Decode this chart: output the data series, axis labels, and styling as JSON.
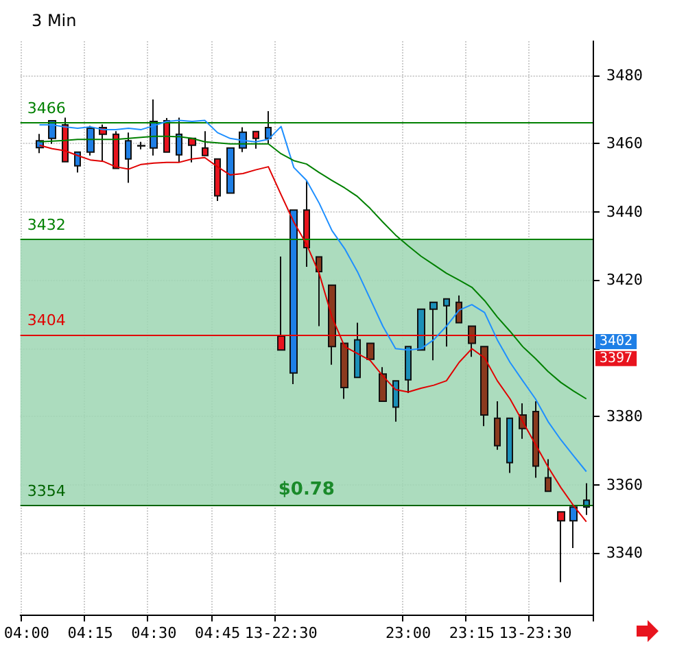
{
  "chart_data": {
    "type": "candlestick",
    "title": "3 Min",
    "categories": [
      "04:00",
      null,
      null,
      null,
      null,
      "04:15",
      null,
      null,
      null,
      null,
      "04:30",
      null,
      null,
      null,
      null,
      "04:45",
      null,
      null,
      null,
      null,
      "13-22:30",
      null,
      null,
      null,
      null,
      null,
      null,
      null,
      null,
      null,
      "23:00",
      null,
      null,
      null,
      null,
      "23:15",
      null,
      null,
      null,
      null,
      "13-23:30",
      null,
      null,
      null,
      null
    ],
    "ohlc": [
      null,
      [
        3458.8,
        3462.8,
        3457.2,
        3460.8
      ],
      [
        3461.5,
        3466.7,
        3459.9,
        3466.7
      ],
      [
        3465.5,
        3467.6,
        3454.7,
        3454.7
      ],
      [
        3453.5,
        3457.5,
        3451.5,
        3457.5
      ],
      [
        3457.5,
        3465.2,
        3456.5,
        3464.5
      ],
      [
        3464.7,
        3465.6,
        3454.8,
        3462.7
      ],
      [
        3462.7,
        3463.6,
        3452.7,
        3452.7
      ],
      [
        3455.5,
        3463.2,
        3448.5,
        3460.8
      ],
      [
        3459.3,
        3460.5,
        3458.3,
        3459.4
      ],
      [
        3458.7,
        3472.9,
        3456.5,
        3466.5
      ],
      [
        3466.7,
        3467.5,
        3457.5,
        3457.5
      ],
      [
        3456.7,
        3467.6,
        3454.5,
        3462.7
      ],
      [
        3461.5,
        3461.5,
        3454.5,
        3459.5
      ],
      [
        3458.7,
        3463.6,
        3456.5,
        3456.5
      ],
      [
        3455.5,
        3455.5,
        3443.2,
        3444.7
      ],
      [
        3445.5,
        3458.7,
        3445.5,
        3458.7
      ],
      [
        3458.7,
        3464.8,
        3457.5,
        3463.3
      ],
      [
        3463.5,
        3463.5,
        3458.5,
        3461.5
      ],
      [
        3461.5,
        3469.5,
        3459.9,
        3464.7
      ],
      [
        3403.6,
        3426.9,
        3399.5,
        3399.5
      ],
      [
        3392.8,
        3440.5,
        3389.5,
        3440.5
      ],
      [
        3440.5,
        3449.2,
        3423.9,
        3429.5
      ],
      [
        3426.8,
        3426.8,
        3406.5,
        3422.5
      ],
      [
        3418.5,
        3418.5,
        3395.2,
        3400.5
      ],
      [
        3401.5,
        3401.5,
        3385.2,
        3388.5
      ],
      [
        3391.5,
        3407.5,
        3391.5,
        3402.5
      ],
      [
        3401.5,
        3401.5,
        3396.8,
        3396.8
      ],
      [
        3392.5,
        3394.5,
        3384.5,
        3384.5
      ],
      [
        3382.8,
        3390.5,
        3378.5,
        3390.5
      ],
      [
        3390.8,
        3400.5,
        3386.9,
        3400.5
      ],
      [
        3399.5,
        3411.5,
        3399.5,
        3411.5
      ],
      [
        3411.5,
        3413.5,
        3396.5,
        3413.5
      ],
      [
        3412.5,
        3414.5,
        3400.5,
        3414.5
      ],
      [
        3413.5,
        3415.5,
        3407.5,
        3407.5
      ],
      [
        3406.5,
        3406.5,
        3397.5,
        3401.5
      ],
      [
        3400.5,
        3400.5,
        3377.2,
        3380.5
      ],
      [
        3379.5,
        3384.5,
        3370.3,
        3371.5
      ],
      [
        3366.5,
        3379.5,
        3363.5,
        3379.5
      ],
      [
        3380.5,
        3383.9,
        3373.5,
        3376.5
      ],
      [
        3381.5,
        3384.5,
        3362.1,
        3365.5
      ],
      [
        3362.1,
        3367.5,
        3358.1,
        3358.1
      ],
      [
        3352.1,
        3352.1,
        3331.5,
        3349.5
      ],
      [
        3349.5,
        3353.5,
        3341.5,
        3353.5
      ],
      [
        3353.5,
        3360.5,
        3351.2,
        3355.5
      ]
    ],
    "colors": [
      null,
      "#1e7fe6",
      "#1e7fe6",
      "#e8141e",
      "#1e7fe6",
      "#1e7fe6",
      "#e8141e",
      "#e8141e",
      "#1e7fe6",
      "#1e7fe6",
      "#1e7fe6",
      "#e8141e",
      "#1e7fe6",
      "#e8141e",
      "#e8141e",
      "#e8141e",
      "#1e7fe6",
      "#1e7fe6",
      "#e8141e",
      "#1e7fe6",
      "#e8141e",
      "#1e7fe6",
      "#e8141e",
      "#8b3a1e",
      "#8b3a1e",
      "#8b3a1e",
      "#1b8fb8",
      "#8b3a1e",
      "#8b3a1e",
      "#1b8fb8",
      "#1b8fb8",
      "#1b8fb8",
      "#1b8fb8",
      "#1b8fb8",
      "#8b3a1e",
      "#8b3a1e",
      "#8b3a1e",
      "#8b3a1e",
      "#1b8fb8",
      "#8b3a1e",
      "#8b3a1e",
      "#8b3a1e",
      "#e8141e",
      "#1e7fe6",
      "#1b8fb8"
    ],
    "series": [
      {
        "type": "line",
        "color": "#1e8fff",
        "values": [
          null,
          3465.5,
          3465.5,
          3464.9,
          3464.5,
          3464.9,
          3464.1,
          3464.1,
          3464.5,
          3464.1,
          3465.2,
          3466.5,
          3466.8,
          3466.5,
          3466.8,
          3463.2,
          3461.5,
          3460.9,
          3460.5,
          3461.2,
          3465,
          3453,
          3449.2,
          3442.5,
          3434.5,
          3429.2,
          3422.5,
          3414.5,
          3406.5,
          3399.9,
          3399.5,
          3399.9,
          3402.5,
          3406.5,
          3411.2,
          3412.8,
          3410.5,
          3402.5,
          3395.9,
          3390.5,
          3385.2,
          3378.5,
          3373.2,
          3368.5,
          3363.9
        ]
      },
      {
        "type": "line",
        "color": "#e00000",
        "values": [
          null,
          3459.5,
          3458.5,
          3457.9,
          3456.5,
          3455.2,
          3454.8,
          3453.2,
          3452.5,
          3453.9,
          3454.3,
          3454.5,
          3454.5,
          3455.5,
          3455.9,
          3453.2,
          3450.8,
          3451.2,
          3452.3,
          3453.2,
          3445,
          3437,
          3430.5,
          3421.9,
          3409.2,
          3400.5,
          3398.5,
          3396.5,
          3391.9,
          3387.9,
          3387.2,
          3388.3,
          3389.2,
          3390.5,
          3395.9,
          3399.9,
          3397.2,
          3390.5,
          3385.2,
          3378.5,
          3371.9,
          3365.2,
          3359.2,
          3353.9,
          3349.2
        ]
      },
      {
        "type": "line",
        "color": "#008000",
        "values": [
          null,
          3460.5,
          3460.7,
          3460.9,
          3461.2,
          3461.2,
          3461.2,
          3461.2,
          3461.5,
          3461.8,
          3462.1,
          3462.1,
          3462,
          3461.5,
          3460.5,
          3460.2,
          3459.9,
          3459.9,
          3459.9,
          3459.9,
          3457,
          3455,
          3454,
          3451.5,
          3449.2,
          3447,
          3444.5,
          3441,
          3437,
          3433.2,
          3430,
          3427,
          3424.5,
          3422,
          3420,
          3417.9,
          3414,
          3409.2,
          3405,
          3400.5,
          3397,
          3393.2,
          3390,
          3387.5,
          3385.2
        ]
      }
    ],
    "ylim": [
      3322,
      3490
    ],
    "yticks": [
      3340,
      3360,
      3380,
      {
        "value": 3400,
        "label": null
      },
      3420,
      3440,
      3460,
      3480
    ],
    "grid": true,
    "ref_lines": [
      {
        "axis": "y",
        "value": 3466,
        "label": "3466",
        "color": "#008000"
      },
      {
        "axis": "y",
        "value": 3404,
        "label": "3404",
        "color": "#e00000"
      },
      {
        "axis": "y",
        "value": 3432,
        "label": "3432",
        "color": "#008000"
      },
      {
        "axis": "y",
        "value": 3354,
        "label": "3354",
        "color": "#006400"
      }
    ],
    "bands": [
      {
        "axis": "y",
        "from": 3354,
        "to": 3432,
        "label": "$0.78",
        "color": "#9dd6b3"
      }
    ],
    "annotations": [
      {
        "text": "3402",
        "y": 3402
      },
      {
        "text": "3397",
        "y": 3397
      }
    ]
  }
}
